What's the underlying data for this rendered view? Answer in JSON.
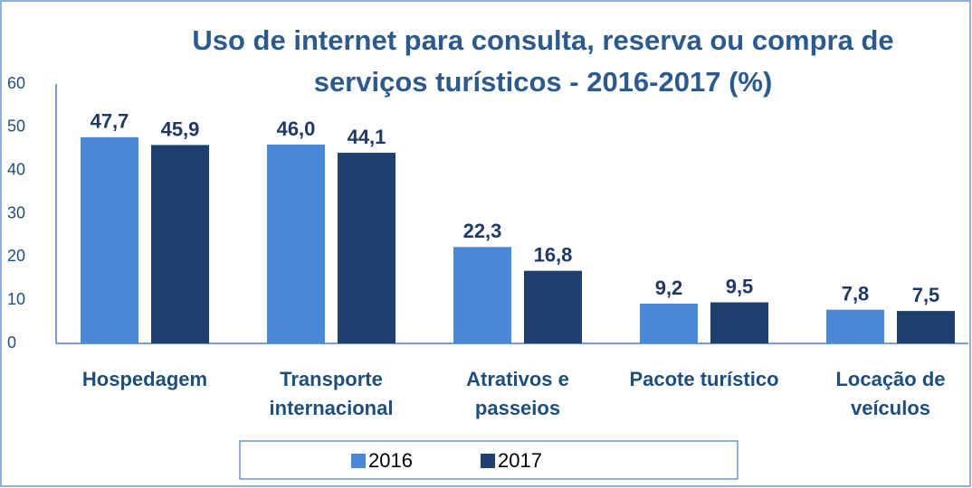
{
  "chart_data": {
    "type": "bar",
    "title": "Uso de internet para consulta, reserva ou compra de serviços turísticos - 2016-2017 (%)",
    "categories": [
      "Hospedagem",
      "Transporte internacional",
      "Atrativos e passeios",
      "Pacote turístico",
      "Locação de veículos"
    ],
    "series": [
      {
        "name": "2016",
        "color": "#4a87d6",
        "values": [
          47.7,
          46.0,
          22.3,
          9.2,
          7.8
        ],
        "value_labels": [
          "47,7",
          "46,0",
          "22,3",
          "9,2",
          "7,8"
        ]
      },
      {
        "name": "2017",
        "color": "#1f3f6e",
        "values": [
          45.9,
          44.1,
          16.8,
          9.5,
          7.5
        ],
        "value_labels": [
          "45,9",
          "44,1",
          "16,8",
          "9,5",
          "7,5"
        ]
      }
    ],
    "ylim": [
      0,
      60
    ],
    "yticks": [
      0,
      10,
      20,
      30,
      40,
      50,
      60
    ],
    "grid": false,
    "legend": "bottom"
  }
}
